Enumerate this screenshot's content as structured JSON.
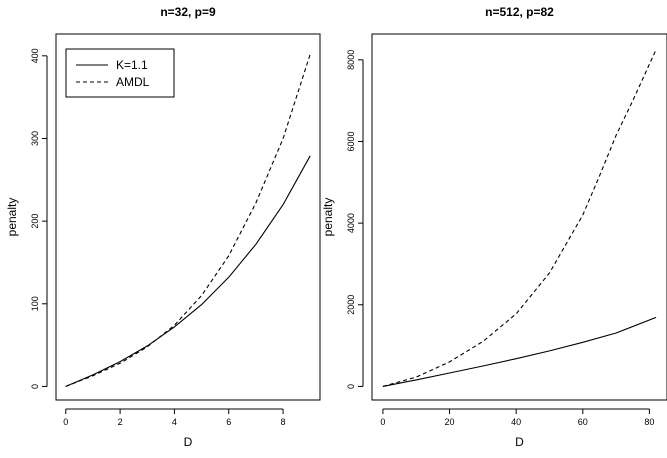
{
  "chart_data": [
    {
      "type": "line",
      "title": "n=32, p=9",
      "xlabel": "D",
      "ylabel": "penalty",
      "xlim": [
        0,
        9
      ],
      "ylim": [
        0,
        410
      ],
      "x_ticks": [
        0,
        2,
        4,
        6,
        8
      ],
      "y_ticks": [
        0,
        100,
        200,
        300,
        400
      ],
      "grid": false,
      "legend_position": "top-left",
      "legend": [
        "K=1.1",
        "AMDL"
      ],
      "series": [
        {
          "name": "K=1.1",
          "style": "solid",
          "x": [
            0,
            1,
            2,
            3,
            4,
            5,
            6,
            7,
            8,
            9
          ],
          "y": [
            0,
            14,
            30,
            49,
            72,
            99,
            132,
            172,
            220,
            279
          ]
        },
        {
          "name": "AMDL",
          "style": "dashed",
          "x": [
            0,
            1,
            2,
            3,
            4,
            5,
            6,
            7,
            8,
            9
          ],
          "y": [
            0,
            13,
            28,
            48,
            74,
            110,
            158,
            222,
            300,
            402
          ]
        }
      ]
    },
    {
      "type": "line",
      "title": "n=512, p=82",
      "xlabel": "D",
      "ylabel": "penalty",
      "xlim": [
        0,
        82
      ],
      "ylim": [
        0,
        8300
      ],
      "x_ticks": [
        0,
        20,
        40,
        60,
        80
      ],
      "y_ticks": [
        0,
        2000,
        4000,
        6000,
        8000
      ],
      "grid": false,
      "series": [
        {
          "name": "K=1.1",
          "style": "solid",
          "x": [
            0,
            10,
            20,
            30,
            40,
            50,
            60,
            70,
            82
          ],
          "y": [
            0,
            160,
            330,
            500,
            680,
            870,
            1080,
            1310,
            1690
          ]
        },
        {
          "name": "AMDL",
          "style": "dashed",
          "x": [
            0,
            10,
            20,
            30,
            40,
            50,
            60,
            65,
            70,
            75,
            82
          ],
          "y": [
            0,
            230,
            600,
            1100,
            1780,
            2780,
            4200,
            5150,
            6150,
            7000,
            8250
          ]
        }
      ]
    }
  ]
}
